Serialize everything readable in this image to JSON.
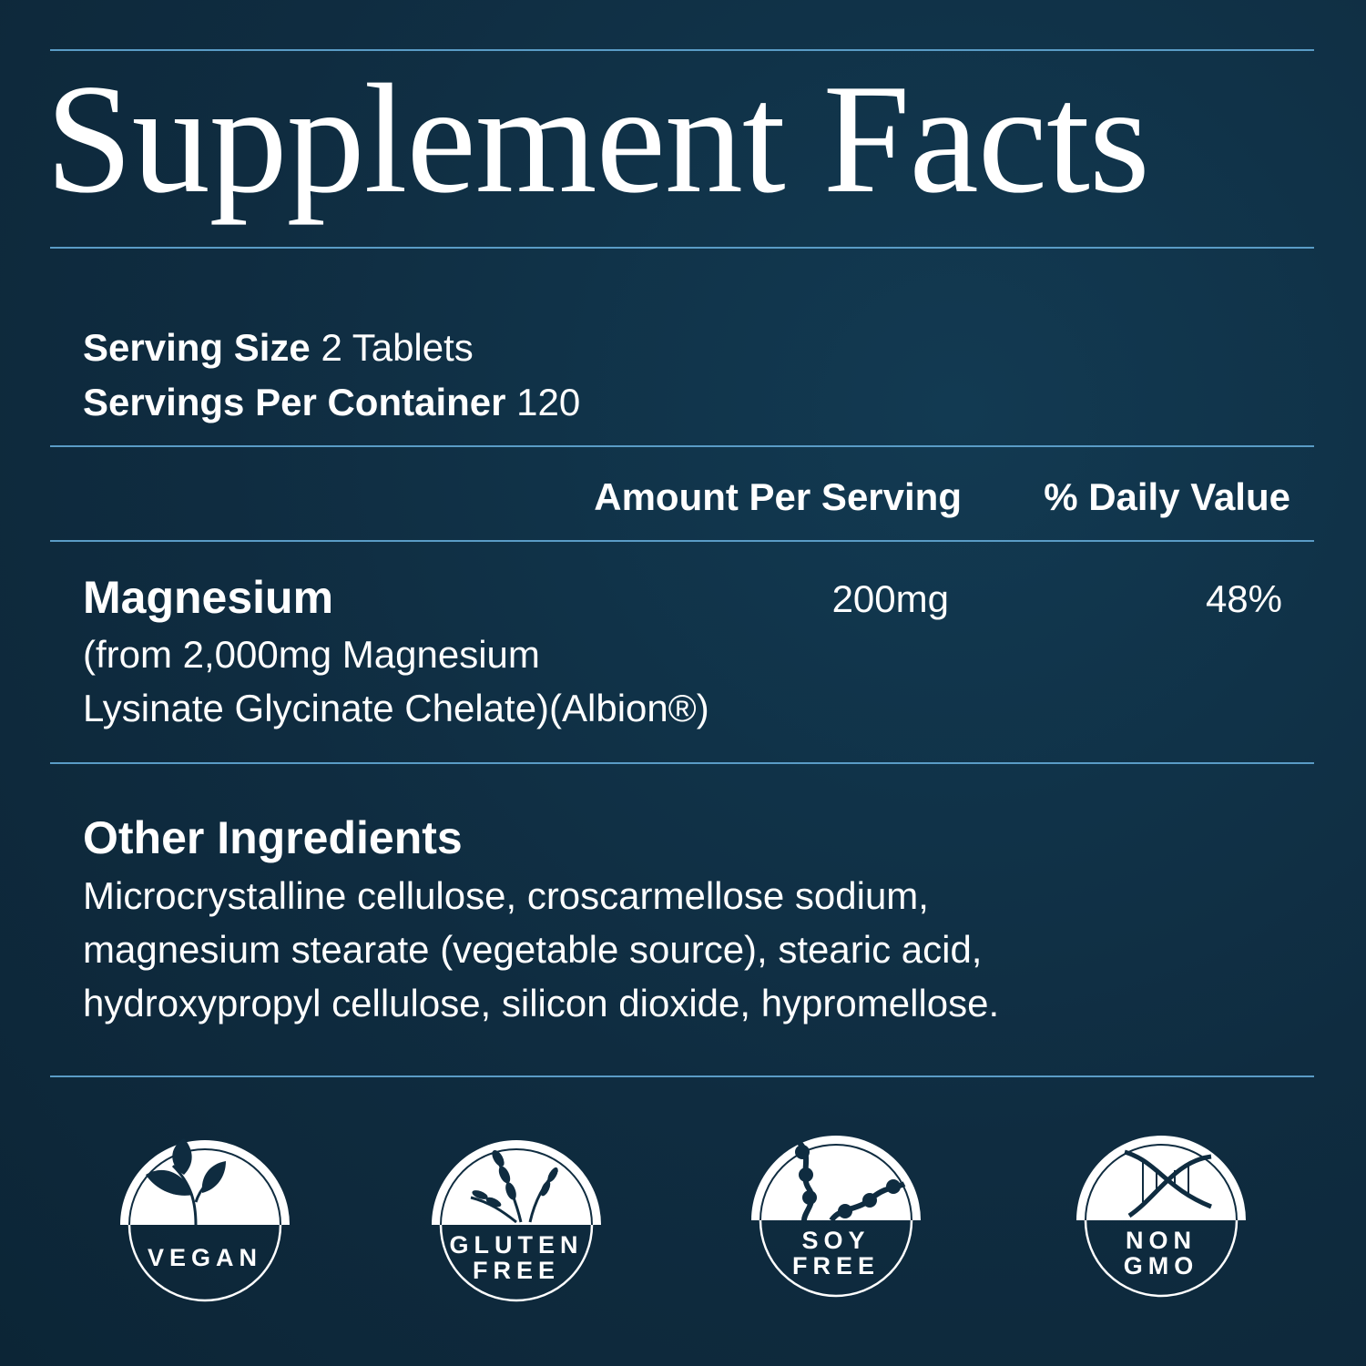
{
  "title": "Supplement Facts",
  "serving": {
    "size_label": "Serving Size",
    "size_value": "2 Tablets",
    "per_container_label": "Servings Per Container",
    "per_container_value": "120"
  },
  "table": {
    "headers": {
      "amount": "Amount Per Serving",
      "dv": "% Daily Value"
    },
    "rows": [
      {
        "name": "Magnesium",
        "detail_lines": [
          "(from 2,000mg Magnesium",
          "Lysinate Glycinate Chelate)(Albion®)"
        ],
        "amount": "200mg",
        "dv": "48%"
      }
    ]
  },
  "other_ingredients": {
    "heading": "Other Ingredients",
    "lines": [
      "Microcrystalline cellulose, croscarmellose sodium,",
      "magnesium stearate (vegetable source), stearic acid,",
      "hydroxypropyl cellulose, silicon dioxide, hypromellose."
    ]
  },
  "badges": [
    {
      "icon": "leaf-icon",
      "lines": [
        "VEGAN"
      ]
    },
    {
      "icon": "wheat-icon",
      "lines": [
        "GLUTEN",
        "FREE"
      ]
    },
    {
      "icon": "soybean-icon",
      "lines": [
        "SOY",
        "FREE"
      ]
    },
    {
      "icon": "dna-icon",
      "lines": [
        "NON",
        "GMO"
      ]
    }
  ],
  "colors": {
    "background": "#0f2c40",
    "rule": "#5a9cc6",
    "text": "#ffffff"
  }
}
